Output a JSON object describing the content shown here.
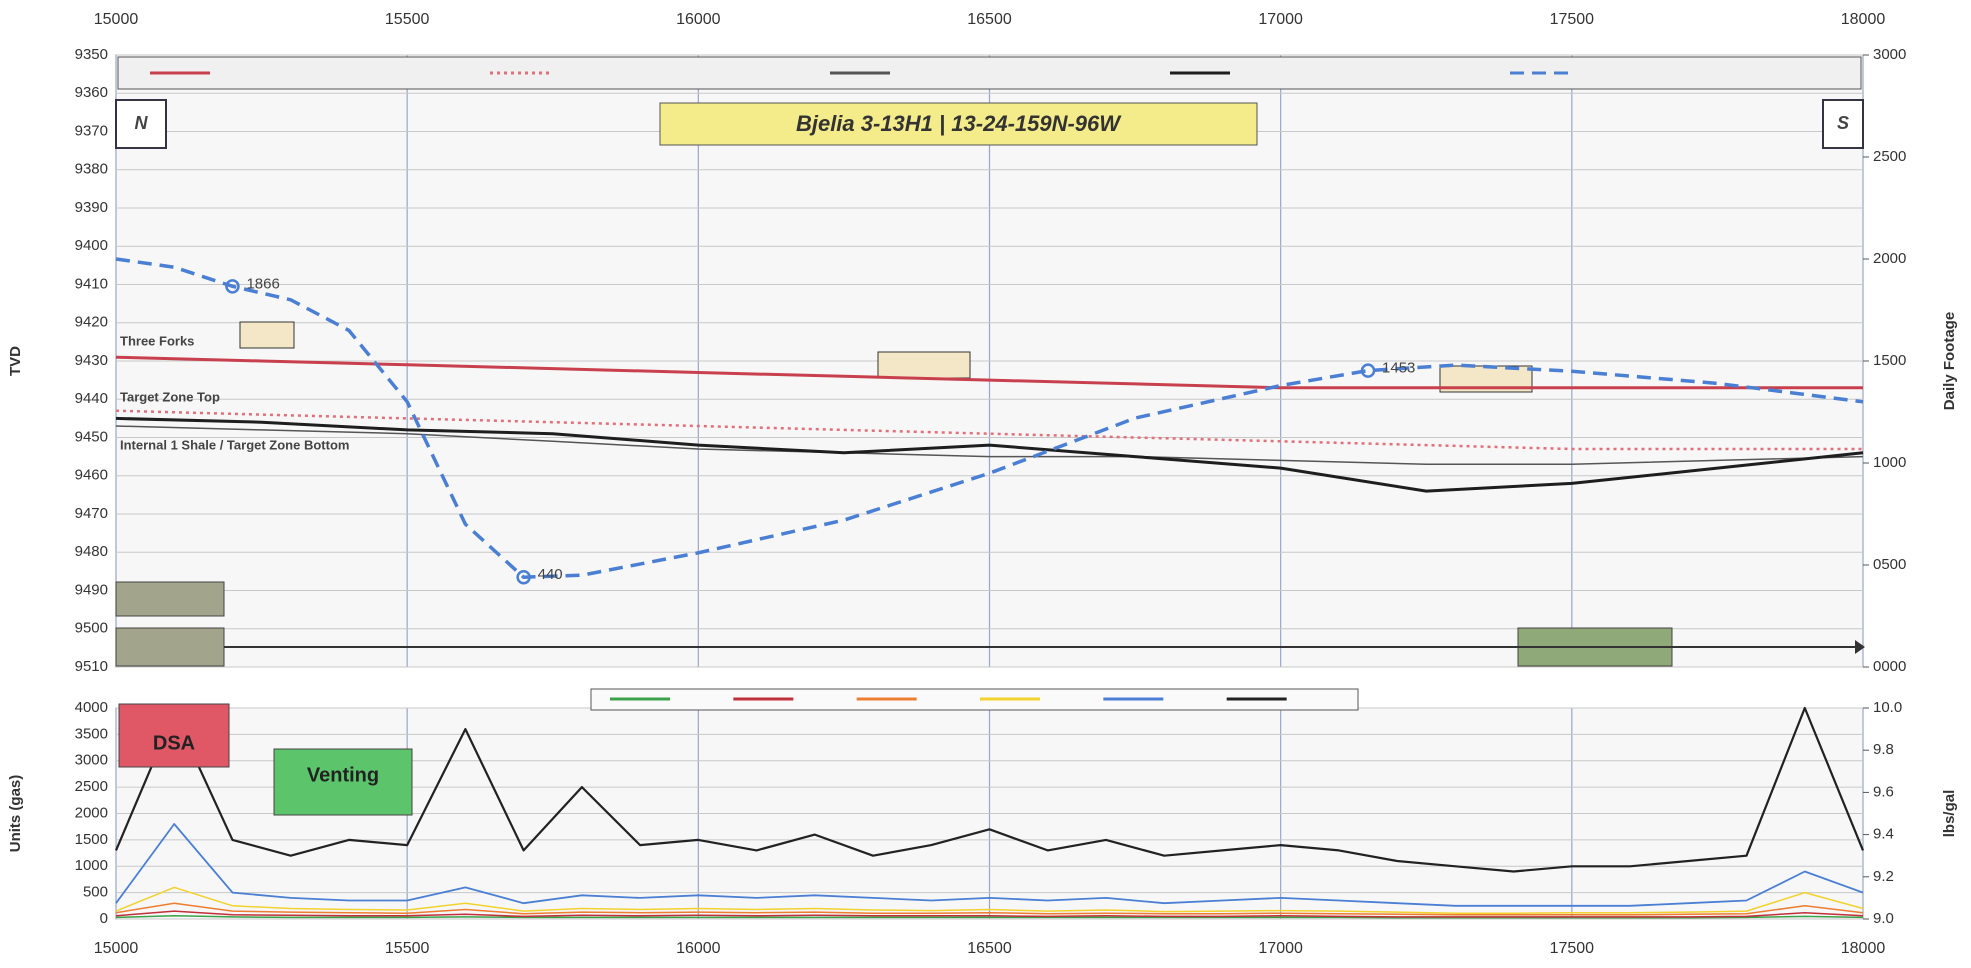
{
  "chart_data": [
    {
      "type": "line",
      "title": "Bjelia 3-13H1 | 13-24-159N-96W",
      "y_label": "TVD",
      "y2_label": "Daily Footage",
      "annotations": [
        "N",
        "S",
        "Three Forks",
        "Target Zone Top",
        "Internal 1 Shale / Target Zone Bottom"
      ],
      "xlim": [
        15000,
        18000
      ],
      "xticks": [
        15000,
        15500,
        16000,
        16500,
        17000,
        17500,
        18000
      ],
      "ylim": [
        9350,
        9510
      ],
      "invert_y": true,
      "yticks": [
        9350,
        9360,
        9370,
        9380,
        9390,
        9400,
        9410,
        9420,
        9430,
        9440,
        9450,
        9460,
        9470,
        9480,
        9490,
        9500,
        9510
      ],
      "y2lim": [
        0,
        3000
      ],
      "y2ticks": [
        {
          "value": 0,
          "label": "0000"
        },
        {
          "value": 500,
          "label": "0500"
        },
        1000,
        1500,
        2000,
        2500,
        3000
      ],
      "grid": true,
      "series": [
        {
          "color": "#c8404e",
          "style": "solid",
          "width": 3,
          "x": [
            15000,
            15250,
            15500,
            15750,
            16000,
            16250,
            16500,
            16750,
            17000,
            17250,
            17500,
            17750,
            18000
          ],
          "values": [
            9429,
            9430,
            9431,
            9432,
            9433,
            9434,
            9435,
            9436,
            9437,
            9437,
            9437,
            9437,
            9437
          ]
        },
        {
          "color": "#e0707a",
          "style": "dotted",
          "width": 2.5,
          "x": [
            15000,
            15250,
            15500,
            15750,
            16000,
            16250,
            16500,
            16750,
            17000,
            17250,
            17500,
            17750,
            18000
          ],
          "values": [
            9443,
            9444,
            9445,
            9446,
            9447,
            9448,
            9449,
            9450,
            9451,
            9452,
            9453,
            9453,
            9453
          ]
        },
        {
          "color": "#555555",
          "style": "solid",
          "width": 1.5,
          "x": [
            15000,
            15250,
            15500,
            15750,
            16000,
            16250,
            16500,
            16750,
            17000,
            17250,
            17500,
            17750,
            18000
          ],
          "values": [
            9447,
            9448,
            9449,
            9451,
            9453,
            9454,
            9455,
            9455,
            9456,
            9457,
            9457,
            9456,
            9455
          ]
        },
        {
          "color": "#1e1e1e",
          "style": "solid",
          "width": 3,
          "x": [
            15000,
            15250,
            15500,
            15750,
            16000,
            16250,
            16500,
            16750,
            17000,
            17250,
            17500,
            17750,
            18000
          ],
          "values": [
            9445,
            9446,
            9448,
            9449,
            9452,
            9454,
            9452,
            9455,
            9458,
            9464,
            9462,
            9458,
            9454
          ]
        },
        {
          "color": "#4a7fd4",
          "style": "dashed",
          "width": 3.5,
          "axis": "y2",
          "labeled_points": [
            2,
            7,
            14
          ],
          "x": [
            15000,
            15100,
            15200,
            15300,
            15400,
            15500,
            15600,
            15700,
            15800,
            16000,
            16250,
            16500,
            16750,
            17000,
            17150,
            17300,
            17500,
            17750,
            18000
          ],
          "values": [
            2000,
            1960,
            1866,
            1800,
            1650,
            1300,
            700,
            440,
            450,
            560,
            720,
            950,
            1220,
            1380,
            1453,
            1480,
            1450,
            1390,
            1300
          ]
        }
      ]
    },
    {
      "type": "line",
      "y_label": "Units (gas)",
      "y2_label": "lbs/gal",
      "annotations": [
        "DSA",
        "Venting"
      ],
      "xlim": [
        15000,
        18000
      ],
      "xticks": [
        15000,
        15500,
        16000,
        16500,
        17000,
        17500,
        18000
      ],
      "ylim": [
        0,
        4000
      ],
      "yticks": [
        0,
        500,
        1000,
        1500,
        2000,
        2500,
        3000,
        3500,
        4000
      ],
      "y2lim": [
        9,
        10
      ],
      "y2ticks": [
        {
          "value": 9,
          "label": "9.0"
        },
        9.2,
        9.4,
        9.6,
        9.8,
        {
          "value": 10,
          "label": "10.0"
        }
      ],
      "grid": true,
      "x": [
        15000,
        15100,
        15200,
        15300,
        15400,
        15500,
        15600,
        15700,
        15800,
        15900,
        16000,
        16100,
        16200,
        16300,
        16400,
        16500,
        16600,
        16700,
        16800,
        16900,
        17000,
        17100,
        17200,
        17300,
        17400,
        17500,
        17600,
        17700,
        17800,
        17900,
        18000
      ],
      "series": [
        {
          "color": "#3aa34a",
          "style": "solid",
          "width": 1.5,
          "values": [
            30,
            60,
            40,
            30,
            30,
            30,
            40,
            30,
            30,
            30,
            30,
            30,
            30,
            30,
            30,
            30,
            30,
            30,
            30,
            30,
            30,
            30,
            25,
            25,
            25,
            25,
            25,
            25,
            30,
            50,
            30
          ]
        },
        {
          "color": "#c0303a",
          "style": "solid",
          "width": 1.5,
          "values": [
            60,
            150,
            80,
            70,
            60,
            60,
            90,
            50,
            70,
            60,
            70,
            60,
            70,
            60,
            60,
            60,
            50,
            60,
            50,
            50,
            60,
            50,
            40,
            40,
            40,
            40,
            40,
            40,
            50,
            120,
            60
          ]
        },
        {
          "color": "#ed7d31",
          "style": "solid",
          "width": 1.5,
          "values": [
            120,
            300,
            150,
            130,
            120,
            110,
            180,
            100,
            130,
            120,
            130,
            120,
            130,
            110,
            110,
            120,
            100,
            110,
            100,
            100,
            110,
            100,
            90,
            80,
            80,
            80,
            80,
            90,
            100,
            250,
            120
          ]
        },
        {
          "color": "#f2d22e",
          "style": "solid",
          "width": 1.5,
          "values": [
            150,
            600,
            250,
            200,
            180,
            170,
            300,
            150,
            200,
            180,
            200,
            180,
            200,
            170,
            160,
            180,
            150,
            170,
            140,
            150,
            160,
            150,
            130,
            110,
            110,
            120,
            120,
            130,
            150,
            500,
            200
          ]
        },
        {
          "color": "#4a7fd4",
          "style": "solid",
          "width": 1.8,
          "values": [
            300,
            1800,
            500,
            400,
            350,
            350,
            600,
            300,
            450,
            400,
            450,
            400,
            450,
            400,
            350,
            400,
            350,
            400,
            300,
            350,
            400,
            350,
            300,
            250,
            250,
            250,
            250,
            300,
            350,
            900,
            500
          ]
        },
        {
          "color": "#222222",
          "style": "solid",
          "width": 2.2,
          "values": [
            1300,
            3900,
            1500,
            1200,
            1500,
            1400,
            3600,
            1300,
            2500,
            1400,
            1500,
            1300,
            1600,
            1200,
            1400,
            1700,
            1300,
            1500,
            1200,
            1300,
            1400,
            1300,
            1100,
            1000,
            900,
            1000,
            1000,
            1100,
            1200,
            4000,
            1300
          ]
        }
      ]
    }
  ]
}
